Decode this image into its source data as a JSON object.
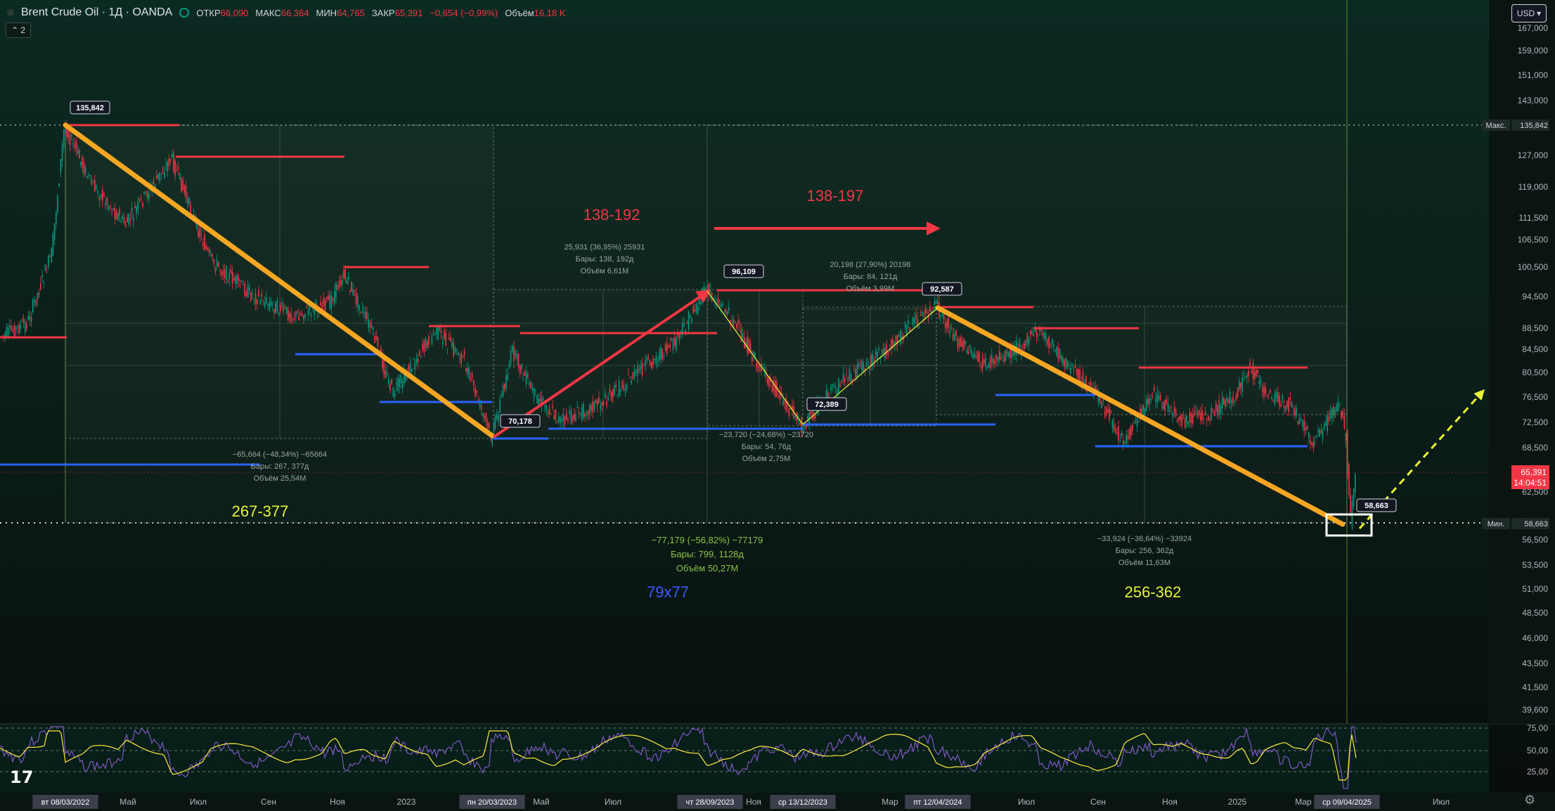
{
  "header": {
    "title": "Brent Crude Oil · 1Д · OANDA",
    "open_label": "ОТКР",
    "open_value": "66,090",
    "high_label": "МАКС",
    "high_value": "66,364",
    "low_label": "МИН",
    "low_value": "64,765",
    "close_label": "ЗАКР",
    "close_value": "65,391",
    "change": "−0,654 (−0,99%)",
    "volume_label": "Объём",
    "volume_value": "16,18 K",
    "collapse_count": "2",
    "currency": "USD"
  },
  "chart_data": {
    "type": "candlestick",
    "symbol": "Brent Crude Oil",
    "interval": "1Д",
    "exchange": "OANDA",
    "price_axis_ticks": [
      "167,000",
      "159,000",
      "151,000",
      "143,000",
      "135,842",
      "127,000",
      "119,000",
      "111,500",
      "106,500",
      "100,500",
      "94,500",
      "88,500",
      "84,500",
      "80,500",
      "76,500",
      "72,500",
      "68,500",
      "65,391",
      "62,500",
      "58,663",
      "56,500",
      "53,500",
      "51,000",
      "48,500",
      "46,000",
      "43,500",
      "41,500",
      "39,600"
    ],
    "price_labels": {
      "max_tag": "Макс.",
      "max_value": "135,842",
      "min_tag": "Мин.",
      "min_value": "58,663",
      "last_value": "65,391",
      "countdown": "14:04:51"
    },
    "time_axis": [
      "вт 08/03/2022",
      "Май",
      "Июл",
      "Сен",
      "Ноя",
      "2023",
      "пн 20/03/2023",
      "Май",
      "Июл",
      "чт 28/09/2023",
      "Ноя",
      "ср 13/12/2023",
      "Мар",
      "пт 12/04/2024",
      "Июл",
      "Сен",
      "Ноя",
      "2025",
      "Мар",
      "ср 09/04/2025",
      "Июл"
    ],
    "oscillator": {
      "ticks": [
        "75,00",
        "50,00",
        "25,00"
      ]
    },
    "pivot_labels": [
      "135,842",
      "96,109",
      "92,587",
      "72,389",
      "70,178",
      "58,663"
    ],
    "annotations": [
      {
        "text": "267-377",
        "color": "#e6f43a"
      },
      {
        "text": "138-192",
        "color": "#f23645"
      },
      {
        "text": "138-197",
        "color": "#f23645"
      },
      {
        "text": "79x77",
        "color": "#3d5afe"
      },
      {
        "text": "256-362",
        "color": "#e6f43a"
      }
    ],
    "measures": [
      {
        "lines": [
          "−65,664 (−48,34%) −65664",
          "Бары: 267, 377д",
          "Объём 25,54M"
        ]
      },
      {
        "lines": [
          "25,931 (36,95%) 25931",
          "Бары: 138, 192д",
          "Объём 6,61M"
        ]
      },
      {
        "lines": [
          "−23,720 (−24,68%) −23720",
          "Бары: 54, 76д",
          "Объём 2,75M"
        ]
      },
      {
        "lines": [
          "20,198 (27,90%) 20198",
          "Бары: 84, 121д",
          "Объём 3,99M"
        ]
      },
      {
        "lines": [
          "−77,179 (−56,82%) −77179",
          "Бары: 799, 1128д",
          "Объём 50,27M"
        ]
      },
      {
        "lines": [
          "−33,924 (−36,64%) −33924",
          "Бары: 256, 362д",
          "Объём 11,63M"
        ]
      }
    ],
    "colors": {
      "background": "#0a1512",
      "up": "#089981",
      "down": "#f23645",
      "trend": "#f5a623",
      "arrow": "#f23645",
      "support": "#2962ff",
      "resistance": "#f23645",
      "projection": "#e6f43a",
      "oscillator": "#7e57c2",
      "oscillator_signal": "#ffeb3b"
    }
  }
}
